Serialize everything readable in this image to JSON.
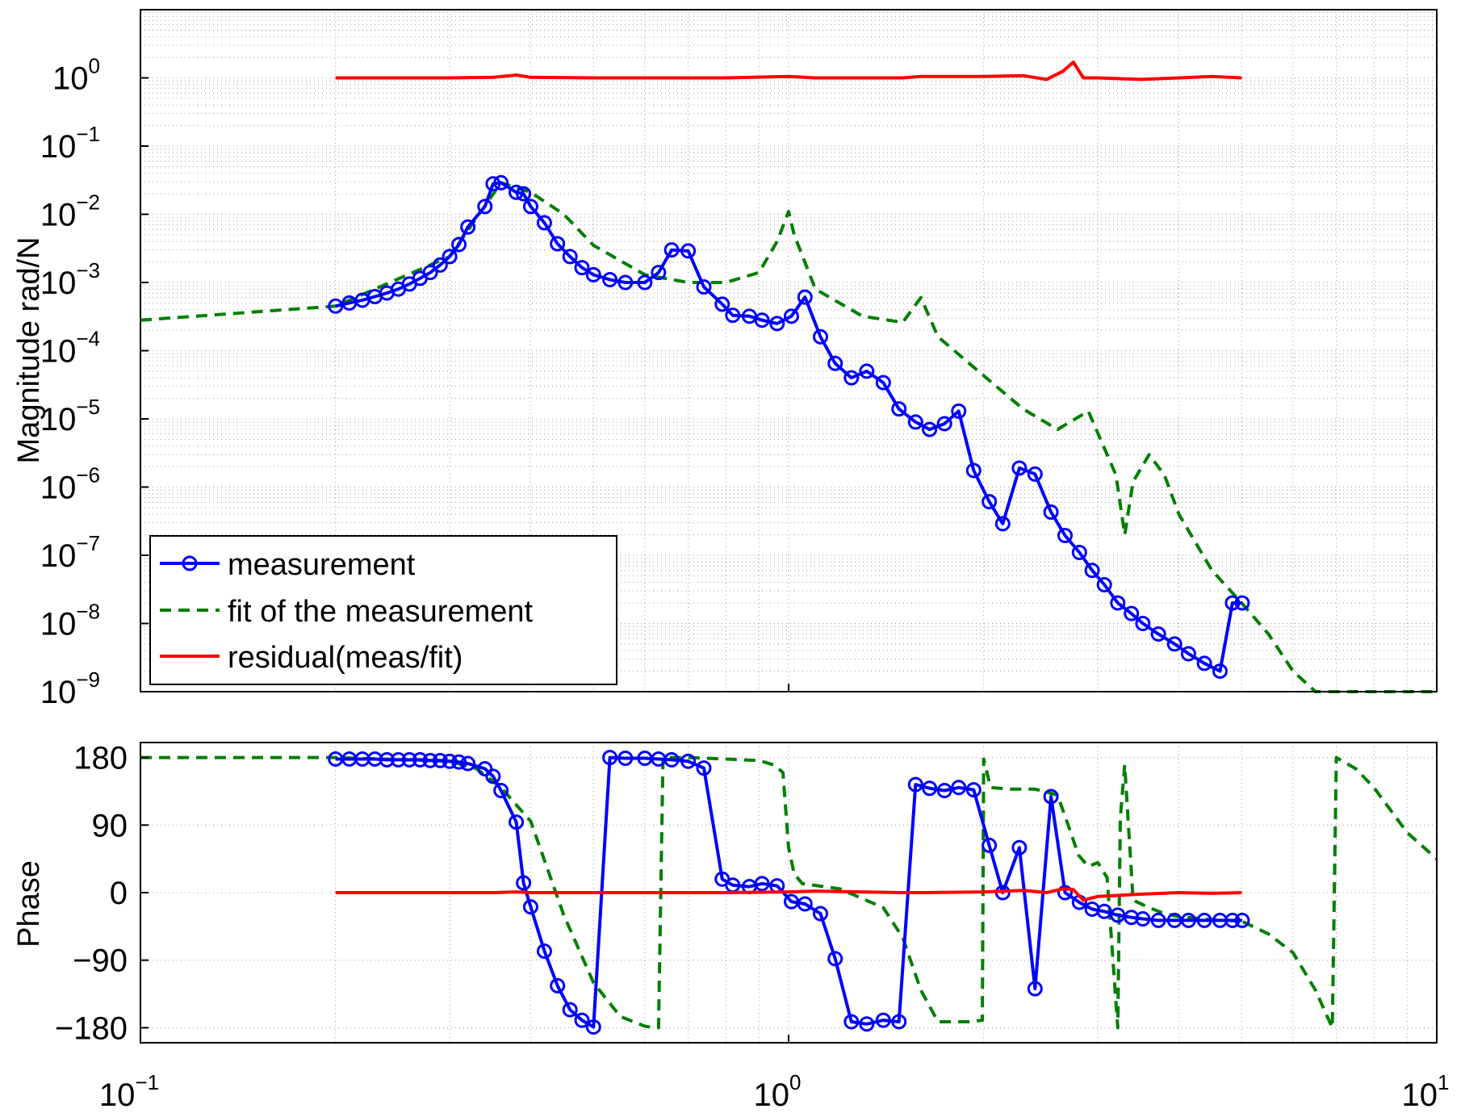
{
  "chart_data": [
    {
      "type": "line",
      "ylabel": "Magnitude rad/N",
      "xscale": "log",
      "yscale": "log",
      "xlim": [
        0.1,
        10
      ],
      "ylim": [
        1e-09,
        10
      ],
      "grid": true,
      "legend_position": "bottom-left",
      "yticks": [
        {
          "base": "10",
          "exp": "0"
        },
        {
          "base": "10",
          "exp": "−1"
        },
        {
          "base": "10",
          "exp": "−2"
        },
        {
          "base": "10",
          "exp": "−3"
        },
        {
          "base": "10",
          "exp": "−4"
        },
        {
          "base": "10",
          "exp": "−5"
        },
        {
          "base": "10",
          "exp": "−6"
        },
        {
          "base": "10",
          "exp": "−7"
        },
        {
          "base": "10",
          "exp": "−8"
        },
        {
          "base": "10",
          "exp": "−9"
        }
      ],
      "series": [
        {
          "name": "measurement",
          "color": "#0000ff",
          "style": "solid-circle-markers",
          "x": [
            0.2,
            0.21,
            0.22,
            0.23,
            0.24,
            0.25,
            0.26,
            0.27,
            0.28,
            0.29,
            0.3,
            0.31,
            0.32,
            0.34,
            0.35,
            0.36,
            0.38,
            0.39,
            0.4,
            0.42,
            0.44,
            0.46,
            0.48,
            0.5,
            0.53,
            0.56,
            0.6,
            0.63,
            0.66,
            0.7,
            0.74,
            0.79,
            0.82,
            0.87,
            0.91,
            0.96,
            1.01,
            1.06,
            1.12,
            1.18,
            1.25,
            1.32,
            1.4,
            1.48,
            1.57,
            1.65,
            1.74,
            1.83,
            1.93,
            2.04,
            2.14,
            2.27,
            2.4,
            2.54,
            2.67,
            2.81,
            2.94,
            3.07,
            3.22,
            3.38,
            3.52,
            3.72,
            3.94,
            4.14,
            4.38,
            4.63,
            4.84,
            5.01
          ],
          "y": [
            0.00045,
            0.0005,
            0.00055,
            0.00062,
            0.0007,
            0.0008,
            0.00095,
            0.00115,
            0.0014,
            0.0018,
            0.0024,
            0.0036,
            0.0065,
            0.013,
            0.028,
            0.029,
            0.021,
            0.02,
            0.013,
            0.0075,
            0.0037,
            0.0024,
            0.00165,
            0.0013,
            0.0011,
            0.001,
            0.001,
            0.0014,
            0.003,
            0.0029,
            0.00086,
            0.00048,
            0.00033,
            0.00032,
            0.00028,
            0.00025,
            0.00032,
            0.00061,
            0.00016,
            6.5e-05,
            4e-05,
            5e-05,
            3.4e-05,
            1.4e-05,
            9e-06,
            7e-06,
            8.5e-06,
            1.3e-05,
            1.75e-06,
            6.1e-07,
            2.9e-07,
            1.9e-06,
            1.55e-06,
            4.3e-07,
            1.95e-07,
            1.1e-07,
            6e-08,
            3.7e-08,
            2e-08,
            1.4e-08,
            1e-08,
            7e-09,
            5e-09,
            3.6e-09,
            2.6e-09,
            2e-09,
            2e-08,
            2e-08
          ],
          "phase": [
            178,
            178,
            178,
            178,
            177,
            177,
            177,
            177,
            176,
            176,
            175,
            174,
            172,
            165,
            155,
            136,
            94,
            13,
            -19,
            -78,
            -124,
            -156,
            -170,
            -179,
            180,
            179,
            179,
            178,
            177,
            175,
            166,
            18,
            10,
            8,
            12,
            9,
            -12,
            -15,
            -28,
            -88,
            -172,
            -175,
            -170,
            -172,
            144,
            139,
            136,
            140,
            137,
            63,
            0,
            60,
            -128,
            128,
            0,
            -13,
            -22,
            -25,
            -30,
            -33,
            -35,
            -37,
            -37,
            -37,
            -37,
            -37,
            -37,
            -37
          ]
        },
        {
          "name": "fit of the measurement",
          "color": "#007f00",
          "style": "dashed",
          "x": [
            0.1,
            0.2,
            0.3,
            0.36,
            0.4,
            0.45,
            0.5,
            0.6,
            0.7,
            0.8,
            0.9,
            0.96,
            1.0,
            1.02,
            1.1,
            1.3,
            1.5,
            1.6,
            1.7,
            2.0,
            2.3,
            2.6,
            2.9,
            3.2,
            3.3,
            3.4,
            3.6,
            3.8,
            4.0,
            4.5,
            5.0,
            5.5,
            6.0,
            6.5,
            7.0,
            8.0,
            9.0,
            10.0
          ],
          "y": [
            0.00028,
            0.00045,
            0.0024,
            0.029,
            0.021,
            0.01,
            0.0035,
            0.0013,
            0.001,
            0.001,
            0.0014,
            0.004,
            0.011,
            0.005,
            0.0008,
            0.00032,
            0.00026,
            0.0006,
            0.00016,
            4.3e-05,
            1.4e-05,
            7e-06,
            1.3e-05,
            1.5e-06,
            2e-07,
            1.2e-06,
            3e-06,
            1.5e-06,
            4e-07,
            6e-08,
            2e-08,
            7e-09,
            2e-09,
            1e-09,
            1e-09,
            1e-09,
            1e-09,
            1e-09
          ],
          "phase_x": [
            0.1,
            0.2,
            0.3,
            0.33,
            0.36,
            0.4,
            0.45,
            0.5,
            0.55,
            0.6,
            0.62,
            0.63,
            0.64,
            0.7,
            0.8,
            0.9,
            0.95,
            0.98,
            1.0,
            1.02,
            1.05,
            1.2,
            1.4,
            1.5,
            1.6,
            1.7,
            1.8,
            1.9,
            1.99,
            2.0,
            2.05,
            2.2,
            2.4,
            2.6,
            2.7,
            2.8,
            2.9,
            3.0,
            3.1,
            3.22,
            3.25,
            3.3,
            3.4,
            3.5,
            3.6,
            3.8,
            4.0,
            4.5,
            5.0,
            5.5,
            6.0,
            6.5,
            6.9,
            7.0,
            7.5,
            8.0,
            9.0,
            10.0
          ],
          "phase": [
            180,
            180,
            175,
            165,
            140,
            95,
            -30,
            -120,
            -165,
            -178,
            -180,
            -180,
            180,
            180,
            178,
            176,
            170,
            160,
            60,
            25,
            12,
            5,
            -20,
            -60,
            -130,
            -172,
            -172,
            -172,
            -170,
            178,
            140,
            138,
            138,
            130,
            90,
            50,
            35,
            40,
            20,
            -180,
            100,
            170,
            -10,
            -15,
            -20,
            -28,
            -32,
            -36,
            -38,
            -55,
            -80,
            -130,
            -180,
            180,
            165,
            140,
            80,
            45
          ]
        },
        {
          "name": "residual(meas/fit)",
          "color": "#ff0000",
          "style": "solid",
          "x": [
            0.2,
            0.3,
            0.35,
            0.38,
            0.4,
            0.5,
            0.6,
            0.8,
            1.0,
            1.1,
            1.5,
            1.6,
            2.0,
            2.3,
            2.5,
            2.65,
            2.75,
            2.85,
            3.0,
            3.5,
            4.0,
            4.5,
            5.0
          ],
          "y": [
            1.0,
            1.0,
            1.02,
            1.1,
            1.02,
            1.0,
            1.0,
            1.0,
            1.05,
            1.0,
            1.0,
            1.05,
            1.05,
            1.08,
            0.95,
            1.25,
            1.7,
            1.0,
            1.0,
            0.95,
            1.0,
            1.05,
            1.0
          ],
          "phase": [
            0,
            0,
            0,
            1,
            0,
            0,
            0,
            0,
            1,
            2,
            0,
            0,
            1,
            3,
            0,
            5,
            4,
            -10,
            -5,
            -2,
            0,
            -1,
            0
          ]
        }
      ]
    },
    {
      "type": "line",
      "ylabel": "Phase",
      "xscale": "log",
      "xlim": [
        0.1,
        10
      ],
      "ylim": [
        -200,
        200
      ],
      "grid": true,
      "yticks": [
        "180",
        "90",
        "0",
        "−90",
        "−180"
      ],
      "xticks": [
        {
          "base": "10",
          "exp": "−1"
        },
        {
          "base": "10",
          "exp": "0"
        },
        {
          "base": "10",
          "exp": "1"
        }
      ]
    }
  ]
}
